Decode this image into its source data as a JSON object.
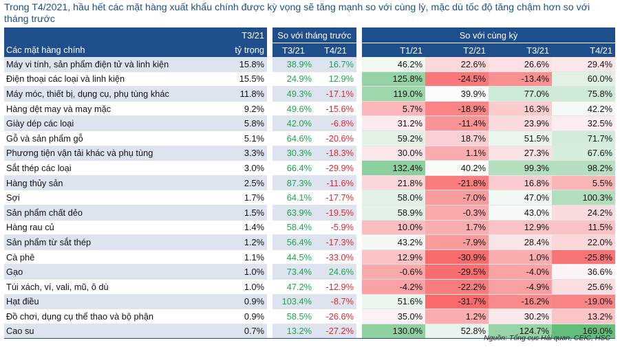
{
  "title": "Trong T4/2021, hầu hết các mặt hàng xuất khẩu chính được kỳ vọng sẽ tăng mạnh so với cùng lỳ, mặc dù tốc độ tăng chậm hơn so với tháng trước",
  "header": {
    "share_top": "T3/21",
    "share_bottom": "tỷ trọng",
    "mom_group": "So với tháng trước",
    "yoy_group": "So với cùng kỳ",
    "name_col": "Các mặt hàng chính",
    "mom_cols": [
      "T3/21",
      "T4/21"
    ],
    "yoy_cols": [
      "T1/21",
      "T2/21",
      "T3/21",
      "T4/21"
    ]
  },
  "colors": {
    "header_bg": "#1f4e8c",
    "positive_text": "#1aa64b",
    "negative_text": "#e8252c",
    "row_shade": "#dde4f0"
  },
  "rows": [
    {
      "name": "Máy vi tính, sản phẩm điện tử và linh kiện",
      "share": "15.8%",
      "mom": [
        "38.9%",
        "16.7%"
      ],
      "yoy": [
        "46.2%",
        "22.6%",
        "26.6%",
        "29.4%"
      ]
    },
    {
      "name": "Điện thoại các loại và linh kiện",
      "share": "15.5%",
      "mom": [
        "24.9%",
        "12.9%"
      ],
      "yoy": [
        "125.8%",
        "-24.5%",
        "-13.4%",
        "60.0%"
      ]
    },
    {
      "name": "Máy móc, thiết bị, dụng cụ, phụ tùng khác",
      "share": "11.8%",
      "mom": [
        "49.3%",
        "-17.1%"
      ],
      "yoy": [
        "119.0%",
        "39.9%",
        "77.0%",
        "75.8%"
      ]
    },
    {
      "name": "Hàng dệt may và may mặc",
      "share": "9.2%",
      "mom": [
        "49.6%",
        "-15.6%"
      ],
      "yoy": [
        "5.7%",
        "-18.9%",
        "16.3%",
        "42.2%"
      ]
    },
    {
      "name": "Giày dép các loại",
      "share": "5.8%",
      "mom": [
        "42.0%",
        "-6.8%"
      ],
      "yoy": [
        "31.2%",
        "-11.4%",
        "23.9%",
        "32.5%"
      ]
    },
    {
      "name": "Gỗ và sản phẩm gỗ",
      "share": "5.1%",
      "mom": [
        "64.6%",
        "-20.6%"
      ],
      "yoy": [
        "59.2%",
        "18.7%",
        "51.5%",
        "71.7%"
      ]
    },
    {
      "name": "Phương tiện vận tải khác và phụ tùng",
      "share": "3.3%",
      "mom": [
        "30.3%",
        "-18.3%"
      ],
      "yoy": [
        "30.0%",
        "1.1%",
        "27.3%",
        "67.6%"
      ]
    },
    {
      "name": "Sắt thép các loại",
      "share": "3.0%",
      "mom": [
        "66.4%",
        "-29.9%"
      ],
      "yoy": [
        "132.4%",
        "40.2%",
        "99.3%",
        "98.2%"
      ]
    },
    {
      "name": "Hàng thủy sản",
      "share": "2.5%",
      "mom": [
        "87.3%",
        "-11.6%"
      ],
      "yoy": [
        "21.8%",
        "-21.8%",
        "16.8%",
        "5.5%"
      ]
    },
    {
      "name": "Sợi",
      "share": "1.7%",
      "mom": [
        "64.1%",
        "-17.7%"
      ],
      "yoy": [
        "58.0%",
        "-7.0%",
        "47.0%",
        "100.3%"
      ]
    },
    {
      "name": "Sản phẩm chất dẻo",
      "share": "1.5%",
      "mom": [
        "63.9%",
        "-19.5%"
      ],
      "yoy": [
        "58.9%",
        "-0.3%",
        "43.0%",
        "24.2%"
      ]
    },
    {
      "name": "Hàng rau củ",
      "share": "1.4%",
      "mom": [
        "58.4%",
        "-5.9%"
      ],
      "yoy": [
        "10.0%",
        "1.7%",
        "12.9%",
        "11.5%"
      ]
    },
    {
      "name": "Sản phẩm từ sắt thép",
      "share": "1.2%",
      "mom": [
        "56.4%",
        "-17.3%"
      ],
      "yoy": [
        "43.2%",
        "-7.9%",
        "28.4%",
        "22.0%"
      ]
    },
    {
      "name": "Cà phê",
      "share": "1.1%",
      "mom": [
        "44.5%",
        "-33.0%"
      ],
      "yoy": [
        "12.9%",
        "-30.9%",
        "1.0%",
        "-25.8%"
      ]
    },
    {
      "name": " Gạo",
      "share": "1.0%",
      "mom": [
        "73.4%",
        "24.6%"
      ],
      "yoy": [
        "-0.6%",
        "-29.5%",
        "-4.0%",
        "36.6%"
      ]
    },
    {
      "name": "Túi xách, ví, vali, mũ, ô dù",
      "share": "1.0%",
      "mom": [
        "47.2%",
        "-12.9%"
      ],
      "yoy": [
        "-4.2%",
        "-22.2%",
        "-4.9%",
        "25.6%"
      ]
    },
    {
      "name": "Hạt điều",
      "share": "0.9%",
      "mom": [
        "103.4%",
        "-8.7%"
      ],
      "yoy": [
        "51.6%",
        "-31.7%",
        "-16.2%",
        "-19.0%"
      ]
    },
    {
      "name": "Đồ chơi, dụng cụ thể thao và bộ phận",
      "share": "0.9%",
      "mom": [
        "58.5%",
        "-26.6%"
      ],
      "yoy": [
        "35.0%",
        "1.2%",
        "30.2%",
        "13.2%"
      ]
    },
    {
      "name": "Cao su",
      "share": "0.7%",
      "mom": [
        "13.2%",
        "-27.2%"
      ],
      "yoy": [
        "130.0%",
        "52.8%",
        "124.7%",
        "169.0%"
      ]
    }
  ],
  "source": "Nguồn: Tổng cục Hải quan, CEIC, HSC"
}
